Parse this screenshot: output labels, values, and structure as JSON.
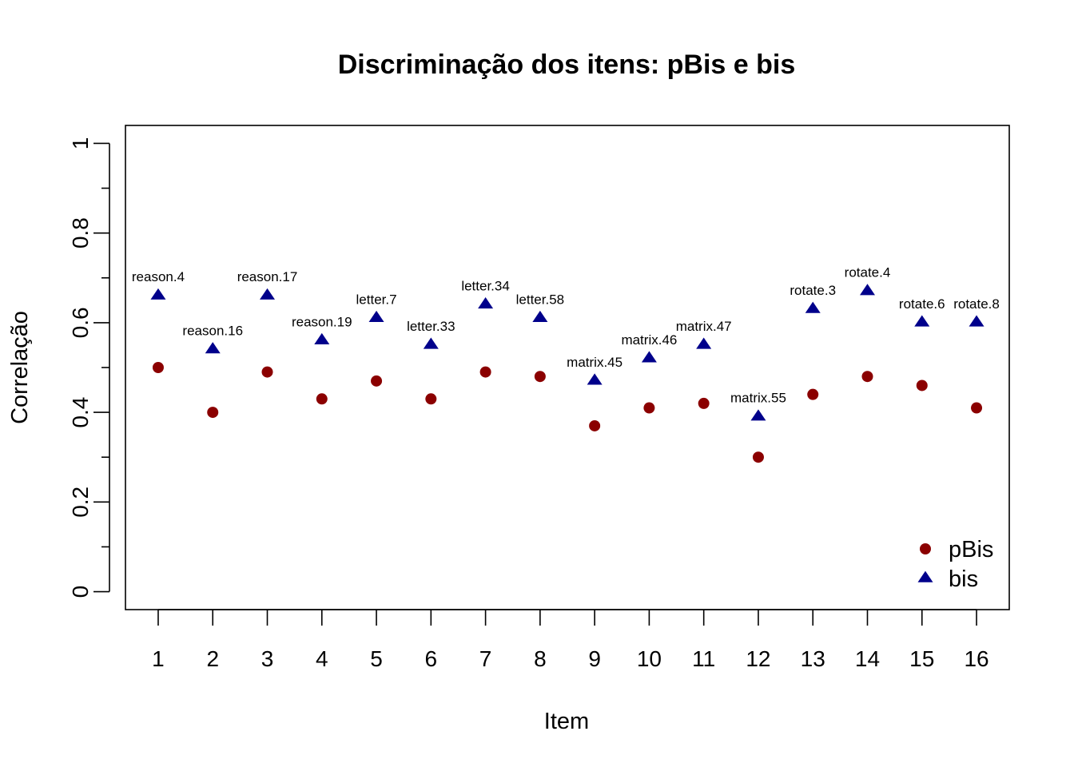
{
  "chart_data": {
    "type": "scatter",
    "title": "Discriminação dos itens: pBis e bis",
    "xlabel": "Item",
    "ylabel": "Correlação",
    "xlim": [
      0.4,
      16.6
    ],
    "ylim": [
      -0.04,
      1.04
    ],
    "x": [
      1,
      2,
      3,
      4,
      5,
      6,
      7,
      8,
      9,
      10,
      11,
      12,
      13,
      14,
      15,
      16
    ],
    "x_ticks": [
      "1",
      "2",
      "3",
      "4",
      "5",
      "6",
      "7",
      "8",
      "9",
      "10",
      "11",
      "12",
      "13",
      "14",
      "15",
      "16"
    ],
    "y_ticks": [
      "0",
      "0.2",
      "0.4",
      "0.6",
      "0.8",
      "1"
    ],
    "y_tick_values": [
      0,
      0.2,
      0.4,
      0.6,
      0.8,
      1
    ],
    "y_minor_ticks": [
      0.1,
      0.3,
      0.5,
      0.7,
      0.9
    ],
    "item_labels": [
      "reason.4",
      "reason.16",
      "reason.17",
      "reason.19",
      "letter.7",
      "letter.33",
      "letter.34",
      "letter.58",
      "matrix.45",
      "matrix.46",
      "matrix.47",
      "matrix.55",
      "rotate.3",
      "rotate.4",
      "rotate.6",
      "rotate.8"
    ],
    "series": [
      {
        "name": "pBis",
        "marker": "circle",
        "color": "#8B0000",
        "values": [
          0.5,
          0.4,
          0.49,
          0.43,
          0.47,
          0.43,
          0.49,
          0.48,
          0.37,
          0.41,
          0.42,
          0.3,
          0.44,
          0.48,
          0.46,
          0.41
        ]
      },
      {
        "name": "bis",
        "marker": "triangle",
        "color": "#00008B",
        "values": [
          0.66,
          0.54,
          0.66,
          0.56,
          0.61,
          0.55,
          0.64,
          0.61,
          0.47,
          0.52,
          0.55,
          0.39,
          0.63,
          0.67,
          0.6,
          0.6
        ]
      }
    ],
    "legend": {
      "position": "bottom-right",
      "entries": [
        "pBis",
        "bis"
      ]
    },
    "grid": false
  }
}
